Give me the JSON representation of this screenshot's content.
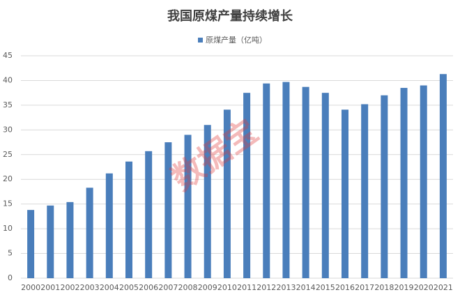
{
  "chart_data": {
    "type": "bar",
    "title": "我国原煤产量持续增长",
    "watermark": "数据宝",
    "categories": [
      "2000",
      "2001",
      "2002",
      "2003",
      "2004",
      "2005",
      "2006",
      "2007",
      "2008",
      "2009",
      "2010",
      "2011",
      "2012",
      "2013",
      "2014",
      "2015",
      "2016",
      "2017",
      "2018",
      "2019",
      "2020",
      "2021"
    ],
    "series": [
      {
        "name": "原煤产量（亿吨）",
        "color": "#4a7ebb",
        "values": [
          13.8,
          14.7,
          15.4,
          18.3,
          21.2,
          23.6,
          25.7,
          27.5,
          29.0,
          31.0,
          34.1,
          37.5,
          39.4,
          39.7,
          38.7,
          37.5,
          34.1,
          35.2,
          37.0,
          38.5,
          39.0,
          41.3
        ]
      }
    ],
    "ylim": [
      0,
      45
    ],
    "yticks": [
      0,
      5,
      10,
      15,
      20,
      25,
      30,
      35,
      40,
      45
    ],
    "grid": true
  }
}
